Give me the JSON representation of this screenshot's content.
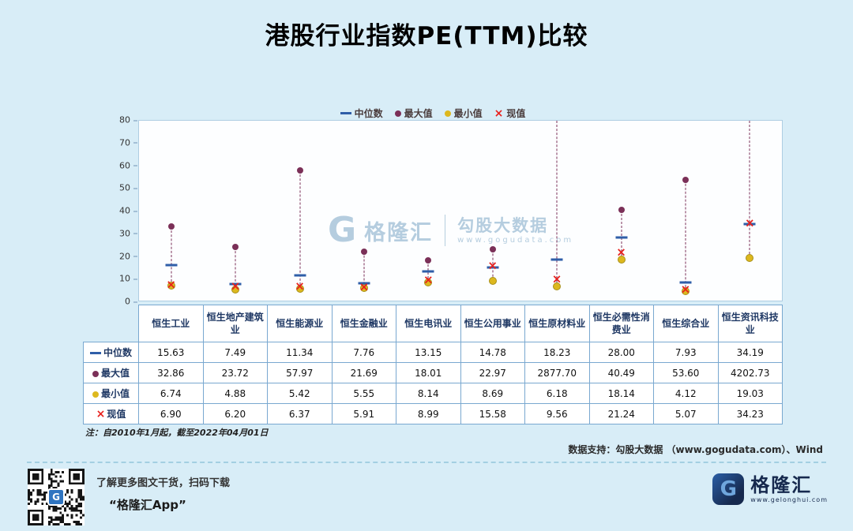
{
  "title": "港股行业指数PE(TTM)比较",
  "chart_data": {
    "type": "scatter",
    "title": "港股行业指数PE(TTM)比较",
    "categories": [
      "恒生工业",
      "恒生地产建筑业",
      "恒生能源业",
      "恒生金融业",
      "恒生电讯业",
      "恒生公用事业",
      "恒生原材料业",
      "恒生必需性消费业",
      "恒生综合业",
      "恒生资讯科技业"
    ],
    "series": [
      {
        "key": "median",
        "name": "中位数",
        "marker": "dash",
        "color": "#2f5ea8",
        "values": [
          15.63,
          7.49,
          11.34,
          7.76,
          13.15,
          14.78,
          18.23,
          28.0,
          7.93,
          34.19
        ]
      },
      {
        "key": "max",
        "name": "最大值",
        "marker": "dot",
        "color": "#7b3058",
        "values": [
          32.86,
          23.72,
          57.97,
          21.69,
          18.01,
          22.97,
          2877.7,
          40.49,
          53.6,
          4202.73
        ]
      },
      {
        "key": "min",
        "name": "最小值",
        "marker": "dot",
        "color": "#ddb81e",
        "values": [
          6.74,
          4.88,
          5.42,
          5.55,
          8.14,
          8.69,
          6.18,
          18.14,
          4.12,
          19.03
        ]
      },
      {
        "key": "current",
        "name": "现值",
        "marker": "x",
        "color": "#e8211d",
        "values": [
          6.9,
          6.2,
          6.37,
          5.91,
          8.99,
          15.58,
          9.56,
          21.24,
          5.07,
          34.23
        ]
      }
    ],
    "ylim": [
      0,
      80
    ],
    "yticks": [
      0,
      10,
      20,
      30,
      40,
      50,
      60,
      70,
      80
    ],
    "legend_position": "top",
    "grid": false
  },
  "table": {
    "rows": [
      {
        "key": "median",
        "label": "中位数",
        "values": [
          "15.63",
          "7.49",
          "11.34",
          "7.76",
          "13.15",
          "14.78",
          "18.23",
          "28.00",
          "7.93",
          "34.19"
        ]
      },
      {
        "key": "max",
        "label": "最大值",
        "values": [
          "32.86",
          "23.72",
          "57.97",
          "21.69",
          "18.01",
          "22.97",
          "2877.70",
          "40.49",
          "53.60",
          "4202.73"
        ]
      },
      {
        "key": "min",
        "label": "最小值",
        "values": [
          "6.74",
          "4.88",
          "5.42",
          "5.55",
          "8.14",
          "8.69",
          "6.18",
          "18.14",
          "4.12",
          "19.03"
        ]
      },
      {
        "key": "current",
        "label": "现值",
        "values": [
          "6.90",
          "6.20",
          "6.37",
          "5.91",
          "8.99",
          "15.58",
          "9.56",
          "21.24",
          "5.07",
          "34.23"
        ]
      }
    ]
  },
  "watermark": {
    "glyph": "G",
    "brand": "格隆汇",
    "name": "勾股大数据",
    "url": "www.gogudata.com"
  },
  "note": "注：自2010年1月起，截至2022年04月01日",
  "source": "数据支持：勾股大数据 （www.gogudata.com）、Wind",
  "footer": {
    "promo_line1": "了解更多图文干货，扫码下载",
    "promo_line2": "“格隆汇App”",
    "logo_glyph": "G",
    "brand": "格隆汇",
    "brand_url": "www.gelonghui.com"
  }
}
